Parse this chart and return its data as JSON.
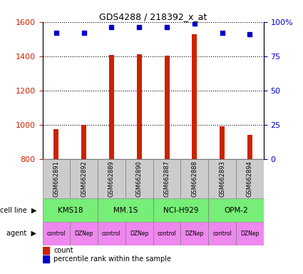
{
  "title": "GDS4288 / 218392_x_at",
  "samples": [
    "GSM662891",
    "GSM662892",
    "GSM662889",
    "GSM662890",
    "GSM662887",
    "GSM662888",
    "GSM662893",
    "GSM662894"
  ],
  "counts": [
    975,
    1000,
    1408,
    1410,
    1405,
    1530,
    990,
    940
  ],
  "percentile_ranks": [
    92,
    92,
    96,
    96,
    96,
    99,
    92,
    91
  ],
  "cell_lines": [
    {
      "name": "KMS18",
      "start": 0,
      "end": 2
    },
    {
      "name": "MM.1S",
      "start": 2,
      "end": 4
    },
    {
      "name": "NCI-H929",
      "start": 4,
      "end": 6
    },
    {
      "name": "OPM-2",
      "start": 6,
      "end": 8
    }
  ],
  "agents": [
    "control",
    "DZNep",
    "control",
    "DZNep",
    "control",
    "DZNep",
    "control",
    "DZNep"
  ],
  "bar_color": "#CC2200",
  "dot_color": "#0000CC",
  "cell_line_color": "#77EE77",
  "agent_color": "#EE88EE",
  "header_color": "#CCCCCC",
  "ylim_left": [
    800,
    1600
  ],
  "ylim_right": [
    0,
    100
  ],
  "yticks_left": [
    800,
    1000,
    1200,
    1400,
    1600
  ],
  "yticks_right": [
    0,
    25,
    50,
    75,
    100
  ],
  "ytick_labels_right": [
    "0",
    "25",
    "50",
    "75",
    "100%"
  ],
  "bar_width": 0.18
}
